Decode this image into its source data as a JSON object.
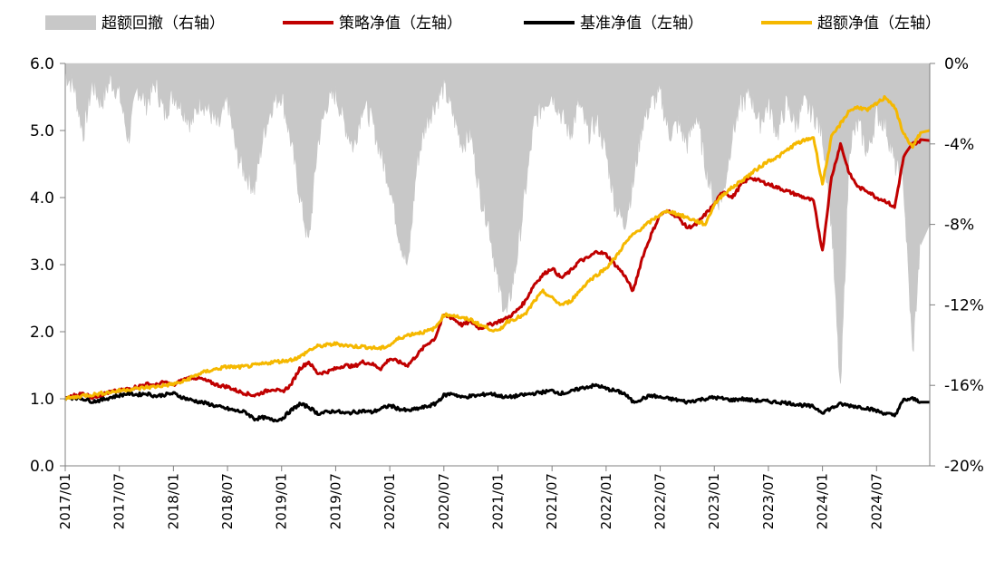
{
  "chart_data": {
    "type": "line",
    "legend_position": "top",
    "grid": false,
    "left_axis": {
      "ylim": [
        0,
        6
      ],
      "ticks": [
        0,
        1,
        2,
        3,
        4,
        5,
        6
      ],
      "tick_labels": [
        "0.0",
        "1.0",
        "2.0",
        "3.0",
        "4.0",
        "5.0",
        "6.0"
      ]
    },
    "right_axis": {
      "ylim": [
        -20,
        0
      ],
      "ticks": [
        0,
        -4,
        -8,
        -12,
        -16,
        -20
      ],
      "tick_labels": [
        "0%",
        "-4%",
        "-8%",
        "-12%",
        "-16%",
        "-20%"
      ]
    },
    "x_ticks": [
      "2017/01",
      "2017/07",
      "2018/01",
      "2018/07",
      "2019/01",
      "2019/07",
      "2020/01",
      "2020/07",
      "2021/01",
      "2021/07",
      "2022/01",
      "2022/07",
      "2023/01",
      "2023/07",
      "2024/01",
      "2024/07"
    ],
    "x_range": [
      "2017/01",
      "2024/12"
    ],
    "series": [
      {
        "name": "超额回撤（右轴）",
        "kind": "area",
        "axis": "right",
        "color": "#c8c8c8",
        "x": [
          "2017/01",
          "2017/02",
          "2017/03",
          "2017/04",
          "2017/05",
          "2017/06",
          "2017/07",
          "2017/08",
          "2017/09",
          "2017/10",
          "2017/11",
          "2017/12",
          "2018/01",
          "2018/02",
          "2018/03",
          "2018/04",
          "2018/05",
          "2018/06",
          "2018/07",
          "2018/08",
          "2018/09",
          "2018/10",
          "2018/11",
          "2018/12",
          "2019/01",
          "2019/02",
          "2019/03",
          "2019/04",
          "2019/05",
          "2019/06",
          "2019/07",
          "2019/08",
          "2019/09",
          "2019/10",
          "2019/11",
          "2019/12",
          "2020/01",
          "2020/02",
          "2020/03",
          "2020/04",
          "2020/05",
          "2020/06",
          "2020/07",
          "2020/08",
          "2020/09",
          "2020/10",
          "2020/11",
          "2020/12",
          "2021/01",
          "2021/02",
          "2021/03",
          "2021/04",
          "2021/05",
          "2021/06",
          "2021/07",
          "2021/08",
          "2021/09",
          "2021/10",
          "2021/11",
          "2021/12",
          "2022/01",
          "2022/02",
          "2022/03",
          "2022/04",
          "2022/05",
          "2022/06",
          "2022/07",
          "2022/08",
          "2022/09",
          "2022/10",
          "2022/11",
          "2022/12",
          "2023/01",
          "2023/02",
          "2023/03",
          "2023/04",
          "2023/05",
          "2023/06",
          "2023/07",
          "2023/08",
          "2023/09",
          "2023/10",
          "2023/11",
          "2023/12",
          "2024/01",
          "2024/02",
          "2024/03",
          "2024/04",
          "2024/05",
          "2024/06",
          "2024/07",
          "2024/08",
          "2024/09",
          "2024/10",
          "2024/11",
          "2024/12"
        ],
        "values": [
          -0.5,
          -1.2,
          -3.5,
          -1.0,
          -2.0,
          -0.8,
          -1.5,
          -3.8,
          -1.2,
          -2.0,
          -1.0,
          -2.5,
          -1.5,
          -2.2,
          -3.0,
          -1.8,
          -2.4,
          -3.2,
          -1.8,
          -4.5,
          -5.5,
          -6.2,
          -3.5,
          -2.0,
          -1.5,
          -3.8,
          -6.5,
          -9.0,
          -4.0,
          -2.0,
          -1.5,
          -3.0,
          -4.2,
          -2.0,
          -2.8,
          -4.5,
          -6.0,
          -8.5,
          -10.2,
          -5.0,
          -3.0,
          -2.0,
          -1.2,
          -2.5,
          -4.0,
          -3.5,
          -6.5,
          -8.0,
          -11.0,
          -12.5,
          -10.0,
          -6.5,
          -3.0,
          -2.0,
          -1.5,
          -2.5,
          -3.5,
          -2.0,
          -3.5,
          -2.8,
          -4.5,
          -7.0,
          -8.0,
          -6.0,
          -3.0,
          -2.0,
          -1.5,
          -3.5,
          -3.0,
          -4.0,
          -2.5,
          -5.0,
          -7.0,
          -6.5,
          -3.5,
          -2.0,
          -1.5,
          -3.0,
          -2.0,
          -3.5,
          -2.0,
          -3.0,
          -2.0,
          -2.5,
          -3.5,
          -8.0,
          -16.5,
          -4.0,
          -3.0,
          -4.5,
          -2.5,
          -3.0,
          -5.0,
          -6.0,
          -14.5,
          -8.0
        ]
      },
      {
        "name": "策略净值（左轴）",
        "kind": "line",
        "axis": "left",
        "color": "#c00000",
        "x": [
          "2017/01",
          "2017/02",
          "2017/03",
          "2017/04",
          "2017/05",
          "2017/06",
          "2017/07",
          "2017/08",
          "2017/09",
          "2017/10",
          "2017/11",
          "2017/12",
          "2018/01",
          "2018/02",
          "2018/03",
          "2018/04",
          "2018/05",
          "2018/06",
          "2018/07",
          "2018/08",
          "2018/09",
          "2018/10",
          "2018/11",
          "2018/12",
          "2019/01",
          "2019/02",
          "2019/03",
          "2019/04",
          "2019/05",
          "2019/06",
          "2019/07",
          "2019/08",
          "2019/09",
          "2019/10",
          "2019/11",
          "2019/12",
          "2020/01",
          "2020/02",
          "2020/03",
          "2020/04",
          "2020/05",
          "2020/06",
          "2020/07",
          "2020/08",
          "2020/09",
          "2020/10",
          "2020/11",
          "2020/12",
          "2021/01",
          "2021/02",
          "2021/03",
          "2021/04",
          "2021/05",
          "2021/06",
          "2021/07",
          "2021/08",
          "2021/09",
          "2021/10",
          "2021/11",
          "2021/12",
          "2022/01",
          "2022/02",
          "2022/03",
          "2022/04",
          "2022/05",
          "2022/06",
          "2022/07",
          "2022/08",
          "2022/09",
          "2022/10",
          "2022/11",
          "2022/12",
          "2023/01",
          "2023/02",
          "2023/03",
          "2023/04",
          "2023/05",
          "2023/06",
          "2023/07",
          "2023/08",
          "2023/09",
          "2023/10",
          "2023/11",
          "2023/12",
          "2024/01",
          "2024/02",
          "2024/03",
          "2024/04",
          "2024/05",
          "2024/06",
          "2024/07",
          "2024/08",
          "2024/09",
          "2024/10",
          "2024/11",
          "2024/12"
        ],
        "values": [
          1.0,
          1.05,
          1.08,
          1.02,
          1.06,
          1.1,
          1.12,
          1.15,
          1.18,
          1.22,
          1.2,
          1.25,
          1.2,
          1.28,
          1.32,
          1.3,
          1.25,
          1.2,
          1.18,
          1.12,
          1.08,
          1.05,
          1.1,
          1.15,
          1.1,
          1.2,
          1.45,
          1.55,
          1.38,
          1.4,
          1.45,
          1.5,
          1.48,
          1.55,
          1.52,
          1.45,
          1.6,
          1.55,
          1.5,
          1.65,
          1.8,
          1.9,
          2.25,
          2.2,
          2.1,
          2.15,
          2.05,
          2.1,
          2.15,
          2.2,
          2.3,
          2.45,
          2.7,
          2.85,
          2.95,
          2.8,
          2.9,
          3.05,
          3.1,
          3.2,
          3.15,
          3.0,
          2.85,
          2.6,
          3.1,
          3.45,
          3.75,
          3.8,
          3.7,
          3.55,
          3.6,
          3.75,
          3.9,
          4.1,
          4.0,
          4.2,
          4.3,
          4.25,
          4.2,
          4.15,
          4.1,
          4.05,
          4.0,
          3.95,
          3.2,
          4.3,
          4.8,
          4.35,
          4.15,
          4.1,
          4.0,
          3.95,
          3.85,
          4.6,
          4.8,
          4.85
        ]
      },
      {
        "name": "基准净值（左轴）",
        "kind": "line",
        "axis": "left",
        "color": "#000000",
        "x": [
          "2017/01",
          "2017/02",
          "2017/03",
          "2017/04",
          "2017/05",
          "2017/06",
          "2017/07",
          "2017/08",
          "2017/09",
          "2017/10",
          "2017/11",
          "2017/12",
          "2018/01",
          "2018/02",
          "2018/03",
          "2018/04",
          "2018/05",
          "2018/06",
          "2018/07",
          "2018/08",
          "2018/09",
          "2018/10",
          "2018/11",
          "2018/12",
          "2019/01",
          "2019/02",
          "2019/03",
          "2019/04",
          "2019/05",
          "2019/06",
          "2019/07",
          "2019/08",
          "2019/09",
          "2019/10",
          "2019/11",
          "2019/12",
          "2020/01",
          "2020/02",
          "2020/03",
          "2020/04",
          "2020/05",
          "2020/06",
          "2020/07",
          "2020/08",
          "2020/09",
          "2020/10",
          "2020/11",
          "2020/12",
          "2021/01",
          "2021/02",
          "2021/03",
          "2021/04",
          "2021/05",
          "2021/06",
          "2021/07",
          "2021/08",
          "2021/09",
          "2021/10",
          "2021/11",
          "2021/12",
          "2022/01",
          "2022/02",
          "2022/03",
          "2022/04",
          "2022/05",
          "2022/06",
          "2022/07",
          "2022/08",
          "2022/09",
          "2022/10",
          "2022/11",
          "2022/12",
          "2023/01",
          "2023/02",
          "2023/03",
          "2023/04",
          "2023/05",
          "2023/06",
          "2023/07",
          "2023/08",
          "2023/09",
          "2023/10",
          "2023/11",
          "2023/12",
          "2024/01",
          "2024/02",
          "2024/03",
          "2024/04",
          "2024/05",
          "2024/06",
          "2024/07",
          "2024/08",
          "2024/09",
          "2024/10",
          "2024/11",
          "2024/12"
        ],
        "values": [
          1.0,
          1.02,
          1.0,
          0.96,
          0.98,
          1.02,
          1.05,
          1.08,
          1.06,
          1.08,
          1.04,
          1.06,
          1.08,
          1.02,
          0.98,
          0.95,
          0.92,
          0.88,
          0.85,
          0.82,
          0.8,
          0.7,
          0.72,
          0.68,
          0.7,
          0.82,
          0.92,
          0.88,
          0.78,
          0.8,
          0.82,
          0.78,
          0.8,
          0.82,
          0.8,
          0.85,
          0.9,
          0.85,
          0.82,
          0.85,
          0.88,
          0.92,
          1.05,
          1.08,
          1.02,
          1.04,
          1.05,
          1.08,
          1.05,
          1.02,
          1.04,
          1.06,
          1.08,
          1.1,
          1.12,
          1.08,
          1.1,
          1.15,
          1.18,
          1.2,
          1.15,
          1.12,
          1.08,
          0.95,
          1.0,
          1.05,
          1.02,
          1.0,
          0.98,
          0.95,
          0.98,
          1.0,
          1.02,
          1.0,
          0.98,
          1.0,
          0.98,
          0.97,
          0.96,
          0.95,
          0.94,
          0.92,
          0.9,
          0.88,
          0.8,
          0.86,
          0.92,
          0.9,
          0.88,
          0.86,
          0.82,
          0.78,
          0.75,
          0.98,
          1.0,
          0.95
        ]
      },
      {
        "name": "超额净值（左轴）",
        "kind": "line",
        "axis": "left",
        "color": "#f5b800",
        "x": [
          "2017/01",
          "2017/02",
          "2017/03",
          "2017/04",
          "2017/05",
          "2017/06",
          "2017/07",
          "2017/08",
          "2017/09",
          "2017/10",
          "2017/11",
          "2017/12",
          "2018/01",
          "2018/02",
          "2018/03",
          "2018/04",
          "2018/05",
          "2018/06",
          "2018/07",
          "2018/08",
          "2018/09",
          "2018/10",
          "2018/11",
          "2018/12",
          "2019/01",
          "2019/02",
          "2019/03",
          "2019/04",
          "2019/05",
          "2019/06",
          "2019/07",
          "2019/08",
          "2019/09",
          "2019/10",
          "2019/11",
          "2019/12",
          "2020/01",
          "2020/02",
          "2020/03",
          "2020/04",
          "2020/05",
          "2020/06",
          "2020/07",
          "2020/08",
          "2020/09",
          "2020/10",
          "2020/11",
          "2020/12",
          "2021/01",
          "2021/02",
          "2021/03",
          "2021/04",
          "2021/05",
          "2021/06",
          "2021/07",
          "2021/08",
          "2021/09",
          "2021/10",
          "2021/11",
          "2021/12",
          "2022/01",
          "2022/02",
          "2022/03",
          "2022/04",
          "2022/05",
          "2022/06",
          "2022/07",
          "2022/08",
          "2022/09",
          "2022/10",
          "2022/11",
          "2022/12",
          "2023/01",
          "2023/02",
          "2023/03",
          "2023/04",
          "2023/05",
          "2023/06",
          "2023/07",
          "2023/08",
          "2023/09",
          "2023/10",
          "2023/11",
          "2023/12",
          "2024/01",
          "2024/02",
          "2024/03",
          "2024/04",
          "2024/05",
          "2024/06",
          "2024/07",
          "2024/08",
          "2024/09",
          "2024/10",
          "2024/11",
          "2024/12"
        ],
        "values": [
          1.0,
          1.02,
          1.05,
          1.06,
          1.08,
          1.1,
          1.12,
          1.14,
          1.15,
          1.17,
          1.18,
          1.2,
          1.22,
          1.25,
          1.32,
          1.38,
          1.42,
          1.45,
          1.48,
          1.47,
          1.48,
          1.5,
          1.52,
          1.55,
          1.56,
          1.58,
          1.62,
          1.72,
          1.78,
          1.8,
          1.82,
          1.8,
          1.78,
          1.78,
          1.76,
          1.75,
          1.8,
          1.9,
          1.95,
          1.98,
          2.0,
          2.05,
          2.25,
          2.25,
          2.2,
          2.18,
          2.1,
          2.05,
          2.0,
          2.15,
          2.2,
          2.25,
          2.45,
          2.6,
          2.5,
          2.4,
          2.45,
          2.6,
          2.75,
          2.85,
          2.95,
          3.1,
          3.3,
          3.45,
          3.55,
          3.65,
          3.75,
          3.8,
          3.75,
          3.7,
          3.65,
          3.6,
          3.9,
          4.05,
          4.15,
          4.25,
          4.35,
          4.45,
          4.55,
          4.6,
          4.7,
          4.8,
          4.85,
          4.9,
          4.2,
          4.9,
          5.1,
          5.3,
          5.35,
          5.3,
          5.4,
          5.5,
          5.35,
          4.95,
          4.75,
          5.0
        ]
      }
    ]
  }
}
